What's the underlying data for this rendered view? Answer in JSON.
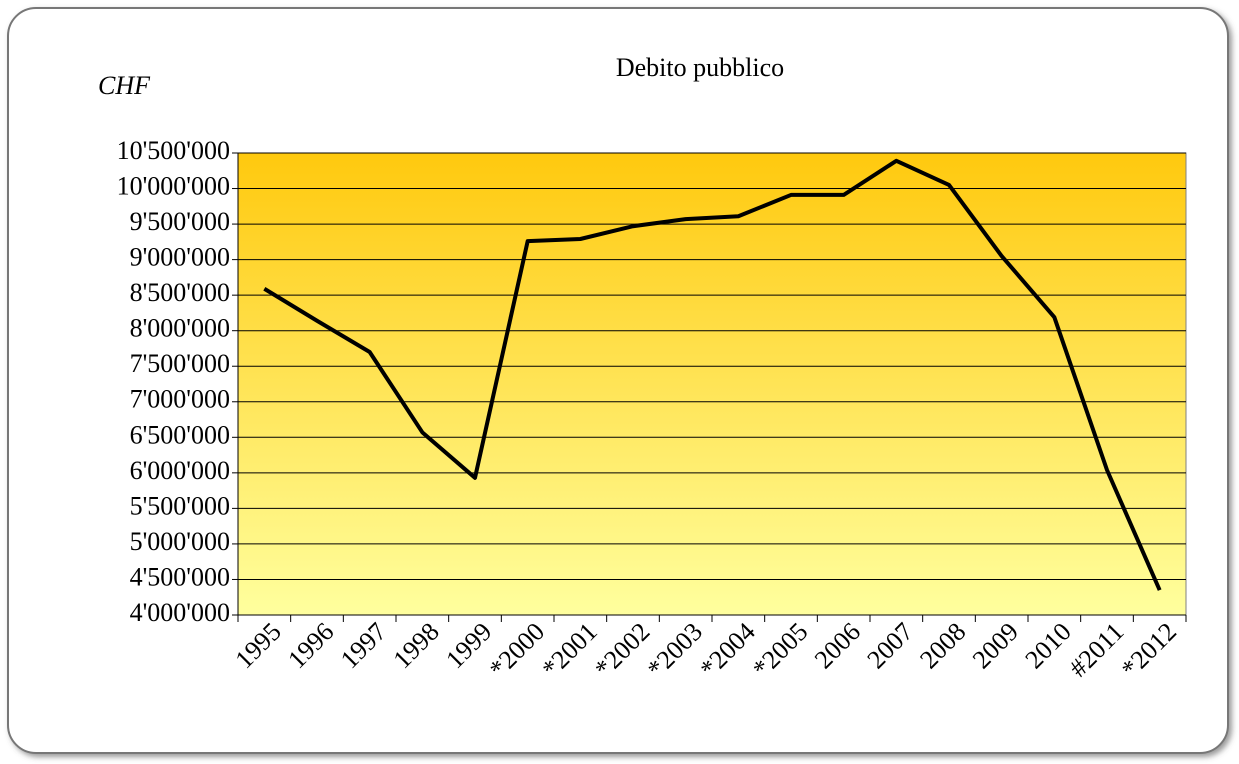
{
  "chart_data": {
    "type": "line",
    "title": "Debito pubblico",
    "y_label": "CHF",
    "categories": [
      "1995",
      "1996",
      "1997",
      "1998",
      "1999",
      "*2000",
      "*2001",
      "*2002",
      "*2003",
      "*2004",
      "*2005",
      "2006",
      "2007",
      "2008",
      "2009",
      "2010",
      "#2011",
      "*2012"
    ],
    "series": [
      {
        "name": "Debito pubblico",
        "color": "#000000",
        "values": [
          8590000,
          8140000,
          7700000,
          6570000,
          5930000,
          9260000,
          9290000,
          9470000,
          9570000,
          9610000,
          9910000,
          9910000,
          10390000,
          10050000,
          9050000,
          8190000,
          6040000,
          4350000
        ]
      }
    ],
    "ylim": [
      4000000,
      10500000
    ],
    "yticks": [
      {
        "value": 4000000,
        "label": "4'000'000"
      },
      {
        "value": 4500000,
        "label": "4'500'000"
      },
      {
        "value": 5000000,
        "label": "5'000'000"
      },
      {
        "value": 5500000,
        "label": "5'500'000"
      },
      {
        "value": 6000000,
        "label": "6'000'000"
      },
      {
        "value": 6500000,
        "label": "6'500'000"
      },
      {
        "value": 7000000,
        "label": "7'000'000"
      },
      {
        "value": 7500000,
        "label": "7'500'000"
      },
      {
        "value": 8000000,
        "label": "8'000'000"
      },
      {
        "value": 8500000,
        "label": "8'500'000"
      },
      {
        "value": 9000000,
        "label": "9'000'000"
      },
      {
        "value": 9500000,
        "label": "9'500'000"
      },
      {
        "value": 10000000,
        "label": "10'000'000"
      },
      {
        "value": 10500000,
        "label": "10'500'000"
      }
    ],
    "grid": true
  }
}
